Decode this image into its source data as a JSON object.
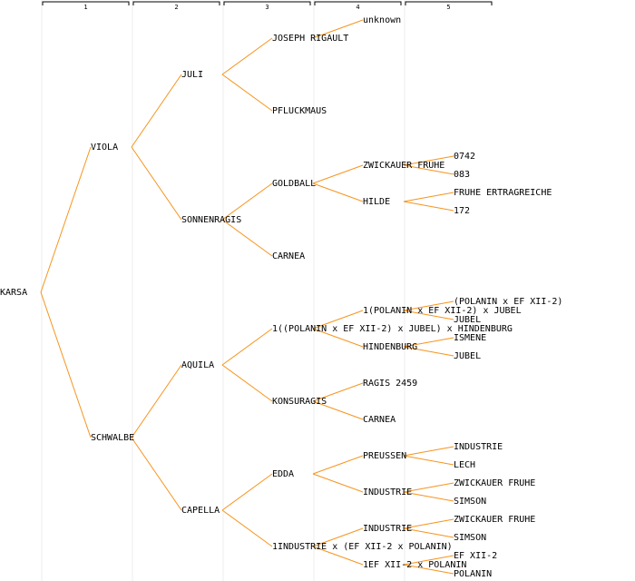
{
  "header": {
    "generations": [
      "1",
      "2",
      "3",
      "4",
      "5"
    ]
  },
  "tree": {
    "label": "KARSA",
    "parents": [
      {
        "label": "VIOLA",
        "parents": [
          {
            "label": "JULI",
            "parents": [
              {
                "label": "JOSEPH RIGAULT",
                "parents": [
                  {
                    "label": "unknown",
                    "parents": [
                      null,
                      null
                    ]
                  },
                  null
                ]
              },
              {
                "label": "PFLUCKMAUS",
                "parents": [
                  null,
                  null
                ]
              }
            ]
          },
          {
            "label": "SONNENRAGIS",
            "parents": [
              {
                "label": "GOLDBALL",
                "parents": [
                  {
                    "label": "ZWICKAUER FRUHE",
                    "parents": [
                      {
                        "label": "0742"
                      },
                      {
                        "label": "083"
                      }
                    ]
                  },
                  {
                    "label": "HILDE",
                    "parents": [
                      {
                        "label": "FRUHE ERTRAGREICHE"
                      },
                      {
                        "label": "172"
                      }
                    ]
                  }
                ]
              },
              {
                "label": "CARNEA",
                "parents": [
                  null,
                  null
                ]
              }
            ]
          }
        ]
      },
      {
        "label": "SCHWALBE",
        "parents": [
          {
            "label": "AQUILA",
            "parents": [
              {
                "label": "1((POLANIN x EF XII-2) x JUBEL) x HINDENBURG",
                "parents": [
                  {
                    "label": "1(POLANIN x EF XII-2) x JUBEL",
                    "parents": [
                      {
                        "label": "(POLANIN x EF XII-2)"
                      },
                      {
                        "label": "JUBEL"
                      }
                    ]
                  },
                  {
                    "label": "HINDENBURG",
                    "parents": [
                      {
                        "label": "ISMENE"
                      },
                      {
                        "label": "JUBEL"
                      }
                    ]
                  }
                ]
              },
              {
                "label": "KONSURAGIS",
                "parents": [
                  {
                    "label": "RAGIS 2459",
                    "parents": [
                      null,
                      null
                    ]
                  },
                  {
                    "label": "CARNEA",
                    "parents": [
                      null,
                      null
                    ]
                  }
                ]
              }
            ]
          },
          {
            "label": "CAPELLA",
            "parents": [
              {
                "label": "EDDA",
                "parents": [
                  {
                    "label": "PREUSSEN",
                    "parents": [
                      {
                        "label": "INDUSTRIE"
                      },
                      {
                        "label": "LECH"
                      }
                    ]
                  },
                  {
                    "label": "INDUSTRIE",
                    "parents": [
                      {
                        "label": "ZWICKAUER FRUHE"
                      },
                      {
                        "label": "SIMSON"
                      }
                    ]
                  }
                ]
              },
              {
                "label": "1INDUSTRIE x (EF XII-2 x POLANIN)",
                "parents": [
                  {
                    "label": "INDUSTRIE",
                    "parents": [
                      {
                        "label": "ZWICKAUER FRUHE"
                      },
                      {
                        "label": "SIMSON"
                      }
                    ]
                  },
                  {
                    "label": "1EF XII-2 x POLANIN",
                    "parents": [
                      {
                        "label": "EF XII-2"
                      },
                      {
                        "label": "POLANIN"
                      }
                    ]
                  }
                ]
              }
            ]
          }
        ]
      }
    ]
  }
}
